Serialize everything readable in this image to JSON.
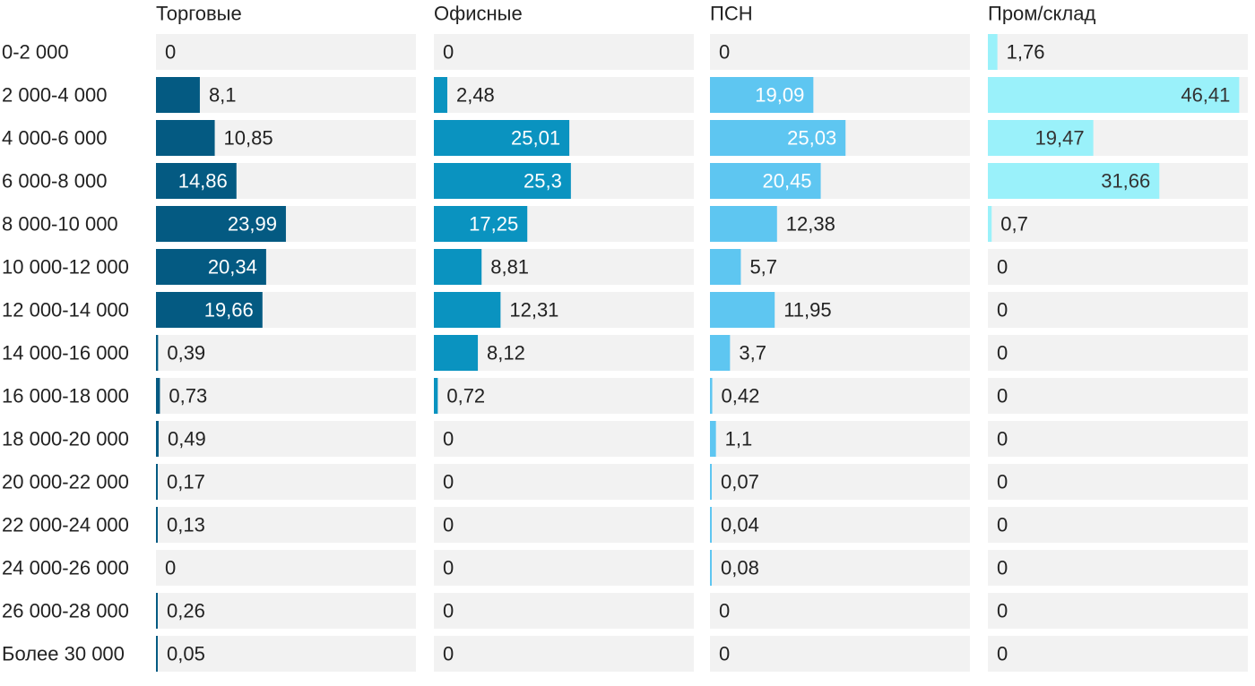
{
  "chart_data": {
    "type": "bar",
    "orientation": "horizontal",
    "layout": "small-multiples",
    "value_labels": true,
    "shared_scale": true,
    "categories": [
      "0-2 000",
      "2 000-4 000",
      "4 000-6 000",
      "6 000-8 000",
      "8 000-10 000",
      "10 000-12 000",
      "12 000-14 000",
      "14 000-16 000",
      "16 000-18 000",
      "18 000-20 000",
      "20 000-22 000",
      "22 000-24 000",
      "24 000-26 000",
      "26 000-28 000",
      "Более 30 000"
    ],
    "xlim": [
      0,
      48
    ],
    "series": [
      {
        "name": "Торговые",
        "color": "#045a82",
        "values": [
          0,
          8.1,
          10.85,
          14.86,
          23.99,
          20.34,
          19.66,
          0.39,
          0.73,
          0.49,
          0.17,
          0.13,
          0,
          0.26,
          0.05
        ]
      },
      {
        "name": "Офисные",
        "color": "#0a93c0",
        "values": [
          0,
          2.48,
          25.01,
          25.3,
          17.25,
          8.81,
          12.31,
          8.12,
          0.72,
          0,
          0,
          0,
          0,
          0,
          0
        ]
      },
      {
        "name": "ПСН",
        "color": "#5ec6f1",
        "values": [
          0,
          19.09,
          25.03,
          20.45,
          12.38,
          5.7,
          11.95,
          3.7,
          0.42,
          1.1,
          0.07,
          0.04,
          0.08,
          0,
          0
        ]
      },
      {
        "name": "Пром/склад",
        "color": "#9af1fa",
        "values": [
          1.76,
          46.41,
          19.47,
          31.66,
          0.7,
          0,
          0,
          0,
          0,
          0,
          0,
          0,
          0,
          0,
          0
        ]
      }
    ],
    "track_color": "#f2f2f2",
    "inside_label_color": "#ffffff",
    "light_inside_label_color": "#333333",
    "outside_label_color": "#222222",
    "decimal_separator": ","
  }
}
